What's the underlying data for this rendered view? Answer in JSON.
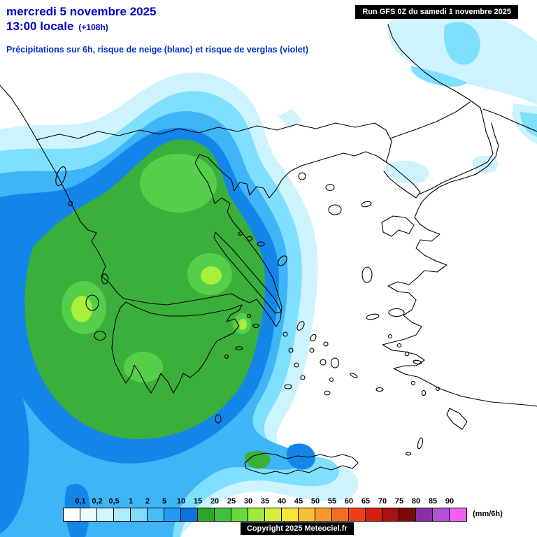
{
  "header": {
    "date": "mercredi 5 novembre 2025",
    "time": "13:00 locale",
    "offset": "(+108h)",
    "subtitle": "Précipitations sur 6h, risque de neige (blanc) et risque de verglas (violet)"
  },
  "run_box": {
    "text": "Run GFS 0Z du samedi 1 novembre 2025"
  },
  "copyright": "Copyright 2025 Meteociel.fr",
  "legend": {
    "unit": "(mm/6h)",
    "thresholds": [
      "0,1",
      "0,2",
      "0,5",
      "1",
      "2",
      "5",
      "10",
      "15",
      "20",
      "25",
      "30",
      "35",
      "40",
      "45",
      "50",
      "55",
      "60",
      "65",
      "70",
      "75",
      "80",
      "85",
      "90"
    ],
    "cell_colors": [
      "#FFFFFF",
      "#E9FBFF",
      "#CFF5FF",
      "#ADEBFF",
      "#7FDBFD",
      "#46BDF8",
      "#219AF2",
      "#0E72DE",
      "#2FA42F",
      "#3FC13F",
      "#66D93B",
      "#9FE83C",
      "#D6EF3A",
      "#F7E63A",
      "#F7C233",
      "#F79A2B",
      "#F56F22",
      "#EF3F18",
      "#D51F12",
      "#A61210",
      "#7A0A0A",
      "#8A2FA8",
      "#B452D4",
      "#F25FF2"
    ]
  },
  "map_colors": {
    "pale": "#CDF3FF",
    "cyan": "#7EDFFF",
    "sky": "#3FB4F6",
    "blue": "#1486EA",
    "green": "#3BAF3B",
    "light_green": "#55CF4A",
    "yellow_green": "#A8EF3C"
  },
  "text_colors": {
    "title_blue": "#0000CC",
    "subtitle_blue": "#0033CC"
  }
}
